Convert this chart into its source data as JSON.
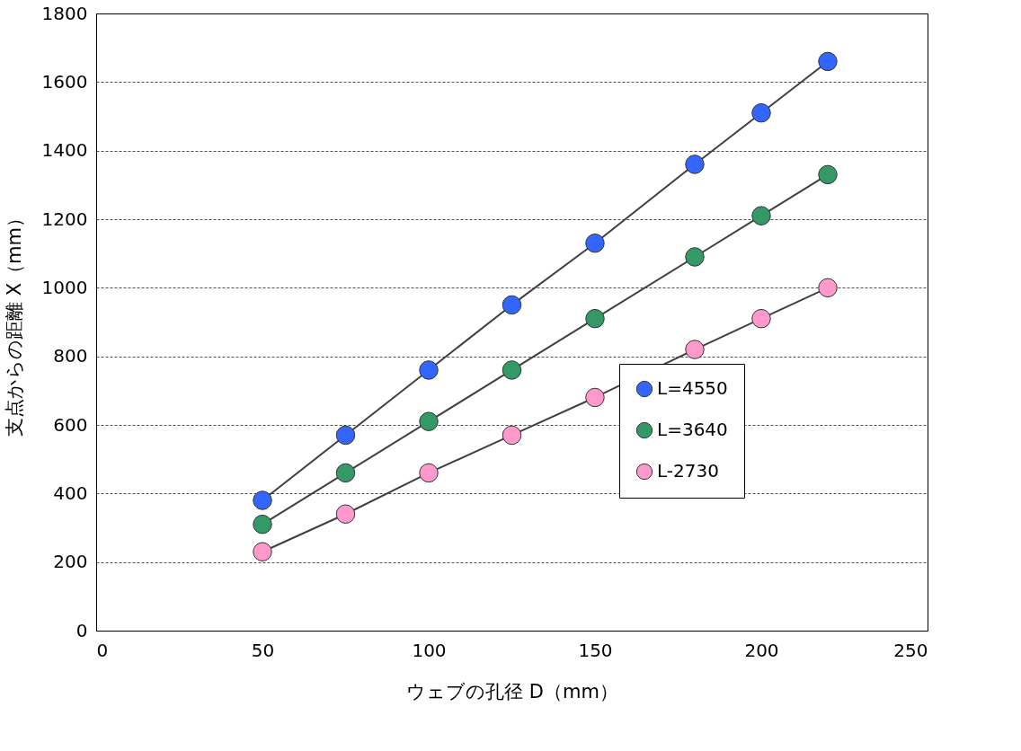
{
  "chart_data": {
    "type": "line",
    "xlabel": "ウェブの孔径 D（mm）",
    "ylabel": "支点からの距離 X（mm）",
    "x": [
      50,
      75,
      100,
      125,
      150,
      180,
      200,
      220
    ],
    "series": [
      {
        "name": "L=4550",
        "color": "#3366ff",
        "values": [
          380,
          570,
          760,
          950,
          1130,
          1360,
          1510,
          1660
        ]
      },
      {
        "name": "L=3640",
        "color": "#339966",
        "values": [
          310,
          460,
          610,
          760,
          910,
          1090,
          1210,
          1330
        ]
      },
      {
        "name": "L-2730",
        "color": "#ff99cc",
        "values": [
          230,
          340,
          460,
          570,
          680,
          820,
          910,
          1000
        ]
      }
    ],
    "xlim": [
      0,
      250
    ],
    "xticks": [
      0,
      50,
      100,
      150,
      200,
      250
    ],
    "ylim": [
      0,
      1800
    ],
    "yticks": [
      0,
      200,
      400,
      600,
      800,
      1000,
      1200,
      1400,
      1600,
      1800
    ],
    "grid": "y",
    "legend": "right",
    "marker": "circle",
    "line_style": "solid"
  }
}
